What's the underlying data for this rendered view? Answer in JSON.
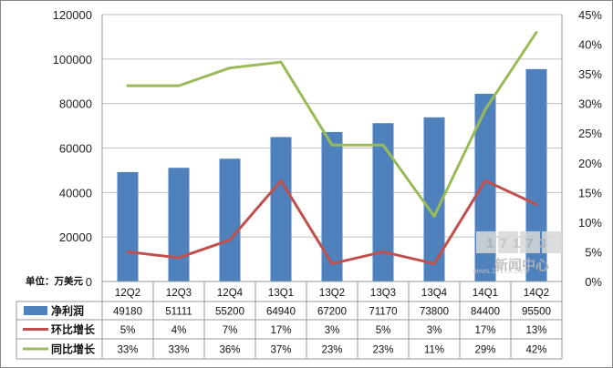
{
  "chart_data": {
    "type": "bar+line",
    "categories": [
      "12Q2",
      "12Q3",
      "12Q4",
      "13Q1",
      "13Q2",
      "13Q3",
      "13Q4",
      "14Q1",
      "14Q2"
    ],
    "unit_label": "单位：万美元",
    "left_axis": {
      "ticks": [
        "120000",
        "100000",
        "80000",
        "60000",
        "40000",
        "20000",
        "0"
      ],
      "ylim": [
        0,
        120000
      ]
    },
    "right_axis": {
      "ticks": [
        "45%",
        "40%",
        "35%",
        "30%",
        "25%",
        "20%",
        "15%",
        "10%",
        "5%",
        "0%"
      ],
      "ylim": [
        0,
        45
      ]
    },
    "series": [
      {
        "name": "净利润",
        "kind": "bar",
        "axis": "left",
        "color": "#4f81bd",
        "values": [
          49180,
          51111,
          55200,
          64940,
          67200,
          71170,
          73800,
          84400,
          95500
        ],
        "labels": [
          "49180",
          "51111",
          "55200",
          "64940",
          "67200",
          "71170",
          "73800",
          "84400",
          "95500"
        ]
      },
      {
        "name": "环比增长",
        "kind": "line",
        "axis": "right",
        "color": "#c0504d",
        "values": [
          5,
          4,
          7,
          17,
          3,
          5,
          3,
          17,
          13
        ],
        "labels": [
          "5%",
          "4%",
          "7%",
          "17%",
          "3%",
          "5%",
          "3%",
          "17%",
          "13%"
        ]
      },
      {
        "name": "同比增长",
        "kind": "line",
        "axis": "right",
        "color": "#9bbb59",
        "values": [
          33,
          33,
          36,
          37,
          23,
          23,
          11,
          29,
          42
        ],
        "labels": [
          "33%",
          "33%",
          "36%",
          "37%",
          "23%",
          "23%",
          "11%",
          "29%",
          "42%"
        ]
      }
    ],
    "data_table": true,
    "gridlines": "horizontal"
  },
  "watermark": {
    "logo_text": "17173",
    "caption": "新闻中心",
    "url": "news.17173.com"
  }
}
